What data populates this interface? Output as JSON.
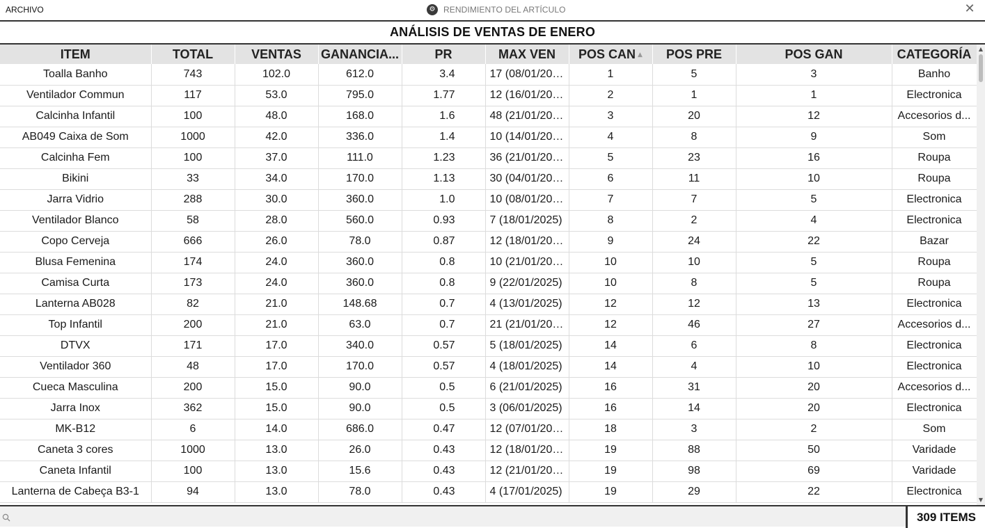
{
  "window": {
    "menu_label": "ARCHIVO",
    "title": "RENDIMIENTO DEL ARTÍCULO",
    "close_glyph": "✕",
    "icon": "app-logo-icon"
  },
  "report": {
    "heading": "ANÁLISIS DE VENTAS DE ENERO"
  },
  "table": {
    "columns": [
      "ITEM",
      "TOTAL",
      "VENTAS",
      "GANANCIA...",
      "PR",
      "MAX VEN",
      "POS CAN",
      "POS PRE",
      "POS GAN",
      "CATEGORÍA"
    ],
    "sorted_column": "POS CAN",
    "sort_glyph": "▲",
    "rows": [
      [
        "Toalla Banho",
        "743",
        "102.0",
        "612.0",
        "3.4",
        "17 (08/01/202...",
        "1",
        "5",
        "3",
        "Banho"
      ],
      [
        "Ventilador Commun",
        "117",
        "53.0",
        "795.0",
        "1.77",
        "12 (16/01/202...",
        "2",
        "1",
        "1",
        "Electronica"
      ],
      [
        "Calcinha Infantil",
        "100",
        "48.0",
        "168.0",
        "1.6",
        "48 (21/01/202...",
        "3",
        "20",
        "12",
        "Accesorios d..."
      ],
      [
        "AB049 Caixa de Som",
        "1000",
        "42.0",
        "336.0",
        "1.4",
        "10 (14/01/202...",
        "4",
        "8",
        "9",
        "Som"
      ],
      [
        "Calcinha Fem",
        "100",
        "37.0",
        "111.0",
        "1.23",
        "36 (21/01/202...",
        "5",
        "23",
        "16",
        "Roupa"
      ],
      [
        "Bikini",
        "33",
        "34.0",
        "170.0",
        "1.13",
        "30 (04/01/202...",
        "6",
        "11",
        "10",
        "Roupa"
      ],
      [
        "Jarra Vidrio",
        "288",
        "30.0",
        "360.0",
        "1.0",
        "10 (08/01/202...",
        "7",
        "7",
        "5",
        "Electronica"
      ],
      [
        "Ventilador Blanco",
        "58",
        "28.0",
        "560.0",
        "0.93",
        "7 (18/01/2025)",
        "8",
        "2",
        "4",
        "Electronica"
      ],
      [
        "Copo Cerveja",
        "666",
        "26.0",
        "78.0",
        "0.87",
        "12 (18/01/202...",
        "9",
        "24",
        "22",
        "Bazar"
      ],
      [
        "Blusa Femenina",
        "174",
        "24.0",
        "360.0",
        "0.8",
        "10 (21/01/202...",
        "10",
        "10",
        "5",
        "Roupa"
      ],
      [
        "Camisa Curta",
        "173",
        "24.0",
        "360.0",
        "0.8",
        "9 (22/01/2025)",
        "10",
        "8",
        "5",
        "Roupa"
      ],
      [
        "Lanterna AB028",
        "82",
        "21.0",
        "148.68",
        "0.7",
        "4 (13/01/2025)",
        "12",
        "12",
        "13",
        "Electronica"
      ],
      [
        "Top Infantil",
        "200",
        "21.0",
        "63.0",
        "0.7",
        "21 (21/01/202...",
        "12",
        "46",
        "27",
        "Accesorios d..."
      ],
      [
        "DTVX",
        "171",
        "17.0",
        "340.0",
        "0.57",
        "5 (18/01/2025)",
        "14",
        "6",
        "8",
        "Electronica"
      ],
      [
        "Ventilador 360",
        "48",
        "17.0",
        "170.0",
        "0.57",
        "4 (18/01/2025)",
        "14",
        "4",
        "10",
        "Electronica"
      ],
      [
        "Cueca Masculina",
        "200",
        "15.0",
        "90.0",
        "0.5",
        "6 (21/01/2025)",
        "16",
        "31",
        "20",
        "Accesorios d..."
      ],
      [
        "Jarra Inox",
        "362",
        "15.0",
        "90.0",
        "0.5",
        "3 (06/01/2025)",
        "16",
        "14",
        "20",
        "Electronica"
      ],
      [
        "MK-B12",
        "6",
        "14.0",
        "686.0",
        "0.47",
        "12 (07/01/202...",
        "18",
        "3",
        "2",
        "Som"
      ],
      [
        "Caneta 3 cores",
        "1000",
        "13.0",
        "26.0",
        "0.43",
        "12 (18/01/202...",
        "19",
        "88",
        "50",
        "Varidade"
      ],
      [
        "Caneta Infantil",
        "100",
        "13.0",
        "15.6",
        "0.43",
        "12 (21/01/202...",
        "19",
        "98",
        "69",
        "Varidade"
      ],
      [
        "Lanterna de Cabeça B3-1",
        "94",
        "13.0",
        "78.0",
        "0.43",
        "4 (17/01/2025)",
        "19",
        "29",
        "22",
        "Electronica"
      ]
    ]
  },
  "footer": {
    "search_placeholder": "",
    "search_value": "",
    "item_count": "309 ITEMS"
  }
}
